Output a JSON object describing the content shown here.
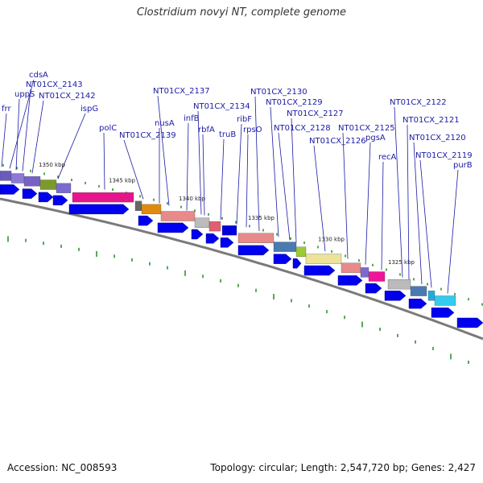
{
  "title": "Clostridium novyi NT, complete genome",
  "footer": {
    "accession": "Accession: NC_008593",
    "summary": "Topology: circular; Length: 2,547,720 bp; Genes: 2,427"
  },
  "colors": {
    "arrow": "#0000ee",
    "label": "#1a1aa6",
    "tick": "#1f8a1f",
    "backbone": "#7a7a7a"
  },
  "kbp_marks": [
    "1350 kbp",
    "1345 kbp",
    "1340 kbp",
    "1335 kbp",
    "1330 kbp",
    "1325 kbp"
  ],
  "gene_labels": [
    "frr",
    "cdsA",
    "uppS",
    "NT01CX_2143",
    "NT01CX_2142",
    "ispG",
    "polC",
    "NT01CX_2139",
    "nusA",
    "NT01CX_2137",
    "infB",
    "NT01CX_2134",
    "rbfA",
    "truB",
    "ribF",
    "rpsO",
    "NT01CX_2130",
    "NT01CX_2129",
    "NT01CX_2128",
    "NT01CX_2127",
    "NT01CX_2126",
    "NT01CX_2125",
    "pgsA",
    "recA",
    "NT01CX_2122",
    "NT01CX_2121",
    "NT01CX_2120",
    "NT01CX_2119",
    "purB"
  ]
}
